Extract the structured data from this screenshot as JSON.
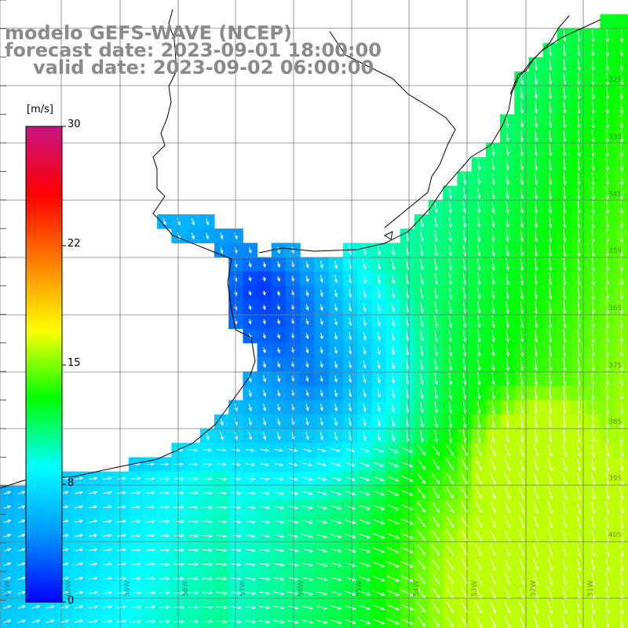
{
  "title": {
    "line1": "modelo GEFS-WAVE (NCEP)",
    "line2": "forecast date: 2023-09-01 18:00:00",
    "line3": "valid date: 2023-09-02 06:00:00"
  },
  "colorbar": {
    "unit": "[m/s]",
    "ticks": [
      "30",
      "22",
      "15",
      "8",
      "0"
    ],
    "tick_values": [
      30,
      22,
      15,
      8,
      0
    ],
    "stops": [
      "#0000ff",
      "#0096ff",
      "#00ffff",
      "#00ff00",
      "#ffff00",
      "#ff8000",
      "#ff0000",
      "#c81482"
    ]
  },
  "map": {
    "variable": "wind speed",
    "land_color": "#ffffff",
    "grid_color": "#7a7a7a",
    "arrow_color": "#ffffff",
    "lat_labels": [
      "32S",
      "33S",
      "34S",
      "35S",
      "36S",
      "37S",
      "38S",
      "39S",
      "40S"
    ],
    "lon_labels": [
      "61W",
      "60W",
      "59W",
      "58W",
      "57W",
      "56W",
      "55W",
      "54W",
      "53W",
      "52W",
      "51W"
    ],
    "legend_icon": "vertical-colorbar"
  }
}
